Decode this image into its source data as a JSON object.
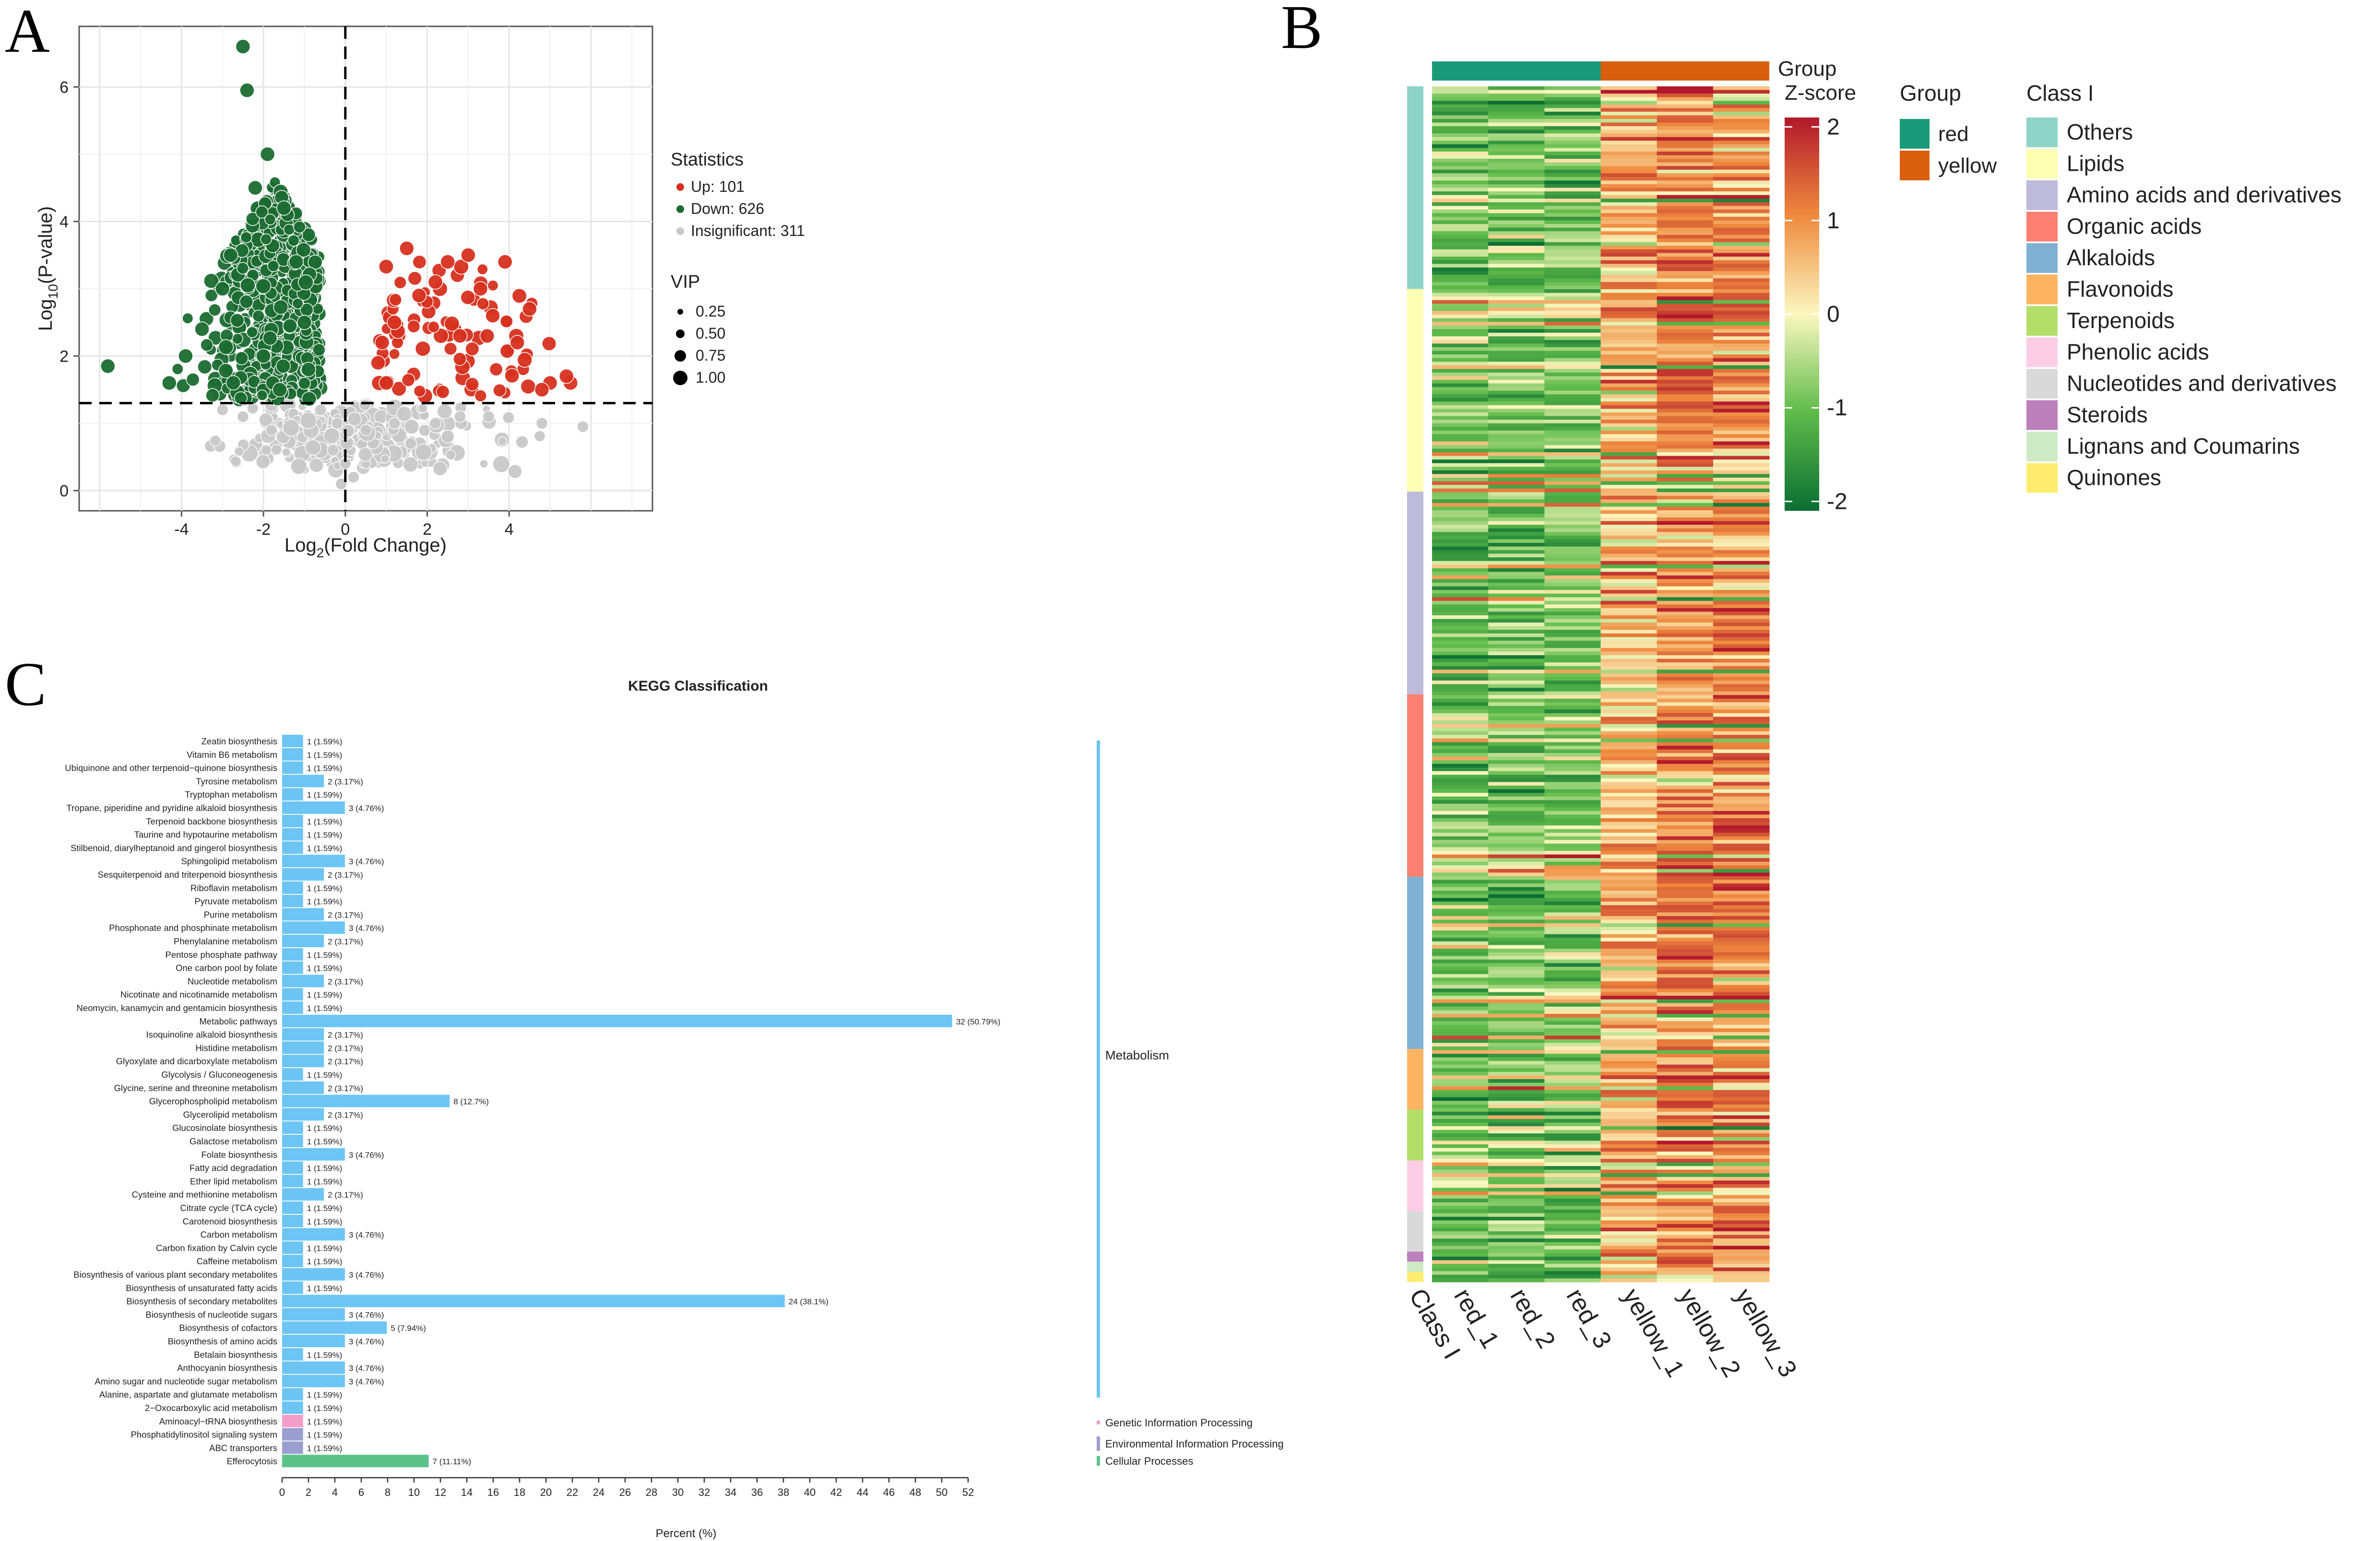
{
  "panels": [
    "A",
    "B",
    "C"
  ],
  "chart_data": [
    {
      "type": "scatter",
      "panel": "A",
      "title": "",
      "xlabel_main": "Log",
      "xlabel_sub": "2",
      "xlabel_rest": "(Fold Change)",
      "ylabel_main": "Log",
      "ylabel_sub": "10",
      "ylabel_rest": "(P-value)",
      "xlim": [
        -6.5,
        7.5
      ],
      "ylim": [
        -0.3,
        6.9
      ],
      "xticks": [
        -4,
        -2,
        0,
        2,
        4
      ],
      "yticks": [
        0,
        2,
        4,
        6
      ],
      "grid": true,
      "thresholds": {
        "x": 0,
        "y": 1.3
      },
      "legend_statistics_title": "Statistics",
      "legend_statistics": [
        {
          "label": "Up: 101",
          "color": "#d7301f"
        },
        {
          "label": "Down: 626",
          "color": "#1b6b32"
        },
        {
          "label": "Insignificant: 311",
          "color": "#c8c8c8"
        }
      ],
      "legend_vip_title": "VIP",
      "legend_vip": [
        "0.25",
        "0.50",
        "0.75",
        "1.00"
      ],
      "series": [
        {
          "name": "Up",
          "count": 101,
          "color": "#d7301f",
          "points": [
            [
              1.5,
              3.6
            ],
            [
              2.5,
              3.4
            ],
            [
              3.0,
              3.5
            ],
            [
              3.9,
              3.4
            ],
            [
              4.5,
              2.7
            ],
            [
              5.0,
              1.6
            ],
            [
              5.5,
              1.6
            ],
            [
              5.4,
              1.7
            ],
            [
              1.2,
              2.5
            ],
            [
              1.8,
              2.9
            ],
            [
              2.2,
              3.1
            ],
            [
              3.3,
              3.0
            ],
            [
              4.2,
              2.2
            ],
            [
              0.9,
              2.2
            ],
            [
              1.0,
              1.6
            ],
            [
              0.8,
              1.9
            ],
            [
              2.8,
              2.3
            ],
            [
              3.6,
              2.6
            ],
            [
              4.8,
              1.5
            ]
          ]
        },
        {
          "name": "Down",
          "count": 626,
          "color": "#1b6b32",
          "points": [
            [
              -2.5,
              6.6
            ],
            [
              -2.4,
              5.95
            ],
            [
              -1.9,
              5.0
            ],
            [
              -2.2,
              4.5
            ],
            [
              -1.5,
              4.2
            ],
            [
              -5.8,
              1.85
            ],
            [
              -3.5,
              2.4
            ],
            [
              -3.9,
              2.0
            ],
            [
              -4.3,
              1.6
            ],
            [
              -3.0,
              3.0
            ],
            [
              -1.0,
              2.5
            ],
            [
              -0.9,
              1.8
            ],
            [
              -2.8,
              3.5
            ],
            [
              -1.2,
              3.4
            ],
            [
              -2.0,
              2.0
            ],
            [
              -1.6,
              1.5
            ]
          ]
        },
        {
          "name": "Insignificant",
          "count": 311,
          "color": "#c8c8c8",
          "points": [
            [
              -0.1,
              0.1
            ],
            [
              0.0,
              0.4
            ],
            [
              0.5,
              0.9
            ],
            [
              -0.3,
              0.6
            ],
            [
              1.2,
              1.0
            ],
            [
              2.8,
              1.1
            ],
            [
              3.5,
              1.1
            ],
            [
              4.8,
              1.0
            ],
            [
              5.8,
              0.95
            ],
            [
              -2.5,
              1.1
            ],
            [
              -1.8,
              0.9
            ],
            [
              -3.0,
              1.2
            ],
            [
              -0.6,
              1.2
            ],
            [
              0.2,
              0.2
            ],
            [
              -0.2,
              1.0
            ],
            [
              2.2,
              1.0
            ],
            [
              1.6,
              0.7
            ]
          ]
        }
      ]
    },
    {
      "type": "heatmap",
      "panel": "B",
      "title": "",
      "columns": [
        "Class I",
        "red_1",
        "red_2",
        "red_3",
        "yellow_1",
        "yellow_2",
        "yellow_3"
      ],
      "group_track_label": "Group",
      "group_legend_title": "Group",
      "groups": [
        {
          "label": "red",
          "color": "#1a9a78"
        },
        {
          "label": "yellow",
          "color": "#d95f0e"
        }
      ],
      "zscore_title": "Z-score",
      "zscore_ticks": [
        "2",
        "1",
        "0",
        "-1",
        "-2"
      ],
      "zscore_range": [
        -2.1,
        2.1
      ],
      "class_legend_title": "Class I",
      "classes": [
        {
          "label": "Others",
          "color": "#8dd3c7",
          "fraction": 0.2
        },
        {
          "label": "Lipids",
          "color": "#ffffb3",
          "fraction": 0.2
        },
        {
          "label": "Amino acids and derivatives",
          "color": "#bebada",
          "fraction": 0.2
        },
        {
          "label": "Organic acids",
          "color": "#fb8072",
          "fraction": 0.18
        },
        {
          "label": "Alkaloids",
          "color": "#80b1d3",
          "fraction": 0.17
        },
        {
          "label": "Flavonoids",
          "color": "#fdb462",
          "fraction": 0.06
        },
        {
          "label": "Terpenoids",
          "color": "#b3de69",
          "fraction": 0.05
        },
        {
          "label": "Phenolic acids",
          "color": "#fccde5",
          "fraction": 0.05
        },
        {
          "label": "Nucleotides and derivatives",
          "color": "#d9d9d9",
          "fraction": 0.04
        },
        {
          "label": "Steroids",
          "color": "#bc80bd",
          "fraction": 0.01
        },
        {
          "label": "Lignans and Coumarins",
          "color": "#ccebc5",
          "fraction": 0.01
        },
        {
          "label": "Quinones",
          "color": "#ffed6f",
          "fraction": 0.01
        }
      ],
      "mean_zscore_by_sample": [
        -0.9,
        -0.9,
        -0.8,
        0.6,
        1.0,
        1.0
      ]
    },
    {
      "type": "bar",
      "orientation": "horizontal",
      "panel": "C",
      "title": "KEGG Classification",
      "xlabel": "Percent (%)",
      "xlim": [
        0,
        52
      ],
      "xticks": [
        0,
        2,
        4,
        6,
        8,
        10,
        12,
        14,
        16,
        18,
        20,
        22,
        24,
        26,
        28,
        30,
        32,
        34,
        36,
        38,
        40,
        42,
        44,
        46,
        48,
        50,
        52
      ],
      "group_legend": [
        {
          "label": "Metabolism",
          "color": "#6cc5f2"
        },
        {
          "label": "Genetic Information Processing",
          "color": "#f29ec8"
        },
        {
          "label": "Environmental Information Processing",
          "color": "#9a9ed0"
        },
        {
          "label": "Cellular Processes",
          "color": "#5cc28a"
        }
      ],
      "bars": [
        {
          "label": "Zeatin biosynthesis",
          "count": 1,
          "percent": 1.59,
          "text": "1 (1.59%)",
          "group": 0
        },
        {
          "label": "Vitamin B6 metabolism",
          "count": 1,
          "percent": 1.59,
          "text": "1 (1.59%)",
          "group": 0
        },
        {
          "label": "Ubiquinone and other terpenoid−quinone biosynthesis",
          "count": 1,
          "percent": 1.59,
          "text": "1 (1.59%)",
          "group": 0
        },
        {
          "label": "Tyrosine metabolism",
          "count": 2,
          "percent": 3.17,
          "text": "2 (3.17%)",
          "group": 0
        },
        {
          "label": "Tryptophan metabolism",
          "count": 1,
          "percent": 1.59,
          "text": "1 (1.59%)",
          "group": 0
        },
        {
          "label": "Tropane, piperidine and pyridine alkaloid biosynthesis",
          "count": 3,
          "percent": 4.76,
          "text": "3 (4.76%)",
          "group": 0
        },
        {
          "label": "Terpenoid backbone biosynthesis",
          "count": 1,
          "percent": 1.59,
          "text": "1 (1.59%)",
          "group": 0
        },
        {
          "label": "Taurine and hypotaurine metabolism",
          "count": 1,
          "percent": 1.59,
          "text": "1 (1.59%)",
          "group": 0
        },
        {
          "label": "Stilbenoid, diarylheptanoid and gingerol biosynthesis",
          "count": 1,
          "percent": 1.59,
          "text": "1 (1.59%)",
          "group": 0
        },
        {
          "label": "Sphingolipid metabolism",
          "count": 3,
          "percent": 4.76,
          "text": "3 (4.76%)",
          "group": 0
        },
        {
          "label": "Sesquiterpenoid and triterpenoid biosynthesis",
          "count": 2,
          "percent": 3.17,
          "text": "2 (3.17%)",
          "group": 0
        },
        {
          "label": "Riboflavin metabolism",
          "count": 1,
          "percent": 1.59,
          "text": "1 (1.59%)",
          "group": 0
        },
        {
          "label": "Pyruvate metabolism",
          "count": 1,
          "percent": 1.59,
          "text": "1 (1.59%)",
          "group": 0
        },
        {
          "label": "Purine metabolism",
          "count": 2,
          "percent": 3.17,
          "text": "2 (3.17%)",
          "group": 0
        },
        {
          "label": "Phosphonate and phosphinate metabolism",
          "count": 3,
          "percent": 4.76,
          "text": "3 (4.76%)",
          "group": 0
        },
        {
          "label": "Phenylalanine metabolism",
          "count": 2,
          "percent": 3.17,
          "text": "2 (3.17%)",
          "group": 0
        },
        {
          "label": "Pentose phosphate pathway",
          "count": 1,
          "percent": 1.59,
          "text": "1 (1.59%)",
          "group": 0
        },
        {
          "label": "One carbon pool by folate",
          "count": 1,
          "percent": 1.59,
          "text": "1 (1.59%)",
          "group": 0
        },
        {
          "label": "Nucleotide metabolism",
          "count": 2,
          "percent": 3.17,
          "text": "2 (3.17%)",
          "group": 0
        },
        {
          "label": "Nicotinate and nicotinamide metabolism",
          "count": 1,
          "percent": 1.59,
          "text": "1 (1.59%)",
          "group": 0
        },
        {
          "label": "Neomycin, kanamycin and gentamicin biosynthesis",
          "count": 1,
          "percent": 1.59,
          "text": "1 (1.59%)",
          "group": 0
        },
        {
          "label": "Metabolic pathways",
          "count": 32,
          "percent": 50.79,
          "text": "32 (50.79%)",
          "group": 0
        },
        {
          "label": "Isoquinoline alkaloid biosynthesis",
          "count": 2,
          "percent": 3.17,
          "text": "2 (3.17%)",
          "group": 0
        },
        {
          "label": "Histidine metabolism",
          "count": 2,
          "percent": 3.17,
          "text": "2 (3.17%)",
          "group": 0
        },
        {
          "label": "Glyoxylate and dicarboxylate metabolism",
          "count": 2,
          "percent": 3.17,
          "text": "2 (3.17%)",
          "group": 0
        },
        {
          "label": "Glycolysis / Gluconeogenesis",
          "count": 1,
          "percent": 1.59,
          "text": "1 (1.59%)",
          "group": 0
        },
        {
          "label": "Glycine, serine and threonine metabolism",
          "count": 2,
          "percent": 3.17,
          "text": "2 (3.17%)",
          "group": 0
        },
        {
          "label": "Glycerophospholipid metabolism",
          "count": 8,
          "percent": 12.7,
          "text": "8 (12.7%)",
          "group": 0
        },
        {
          "label": "Glycerolipid metabolism",
          "count": 2,
          "percent": 3.17,
          "text": "2 (3.17%)",
          "group": 0
        },
        {
          "label": "Glucosinolate biosynthesis",
          "count": 1,
          "percent": 1.59,
          "text": "1 (1.59%)",
          "group": 0
        },
        {
          "label": "Galactose metabolism",
          "count": 1,
          "percent": 1.59,
          "text": "1 (1.59%)",
          "group": 0
        },
        {
          "label": "Folate biosynthesis",
          "count": 3,
          "percent": 4.76,
          "text": "3 (4.76%)",
          "group": 0
        },
        {
          "label": "Fatty acid degradation",
          "count": 1,
          "percent": 1.59,
          "text": "1 (1.59%)",
          "group": 0
        },
        {
          "label": "Ether lipid metabolism",
          "count": 1,
          "percent": 1.59,
          "text": "1 (1.59%)",
          "group": 0
        },
        {
          "label": "Cysteine and methionine metabolism",
          "count": 2,
          "percent": 3.17,
          "text": "2 (3.17%)",
          "group": 0
        },
        {
          "label": "Citrate cycle (TCA cycle)",
          "count": 1,
          "percent": 1.59,
          "text": "1 (1.59%)",
          "group": 0
        },
        {
          "label": "Carotenoid biosynthesis",
          "count": 1,
          "percent": 1.59,
          "text": "1 (1.59%)",
          "group": 0
        },
        {
          "label": "Carbon metabolism",
          "count": 3,
          "percent": 4.76,
          "text": "3 (4.76%)",
          "group": 0
        },
        {
          "label": "Carbon fixation by Calvin cycle",
          "count": 1,
          "percent": 1.59,
          "text": "1 (1.59%)",
          "group": 0
        },
        {
          "label": "Caffeine metabolism",
          "count": 1,
          "percent": 1.59,
          "text": "1 (1.59%)",
          "group": 0
        },
        {
          "label": "Biosynthesis of various plant secondary metabolites",
          "count": 3,
          "percent": 4.76,
          "text": "3 (4.76%)",
          "group": 0
        },
        {
          "label": "Biosynthesis of unsaturated fatty acids",
          "count": 1,
          "percent": 1.59,
          "text": "1 (1.59%)",
          "group": 0
        },
        {
          "label": "Biosynthesis of secondary metabolites",
          "count": 24,
          "percent": 38.1,
          "text": "24 (38.1%)",
          "group": 0
        },
        {
          "label": "Biosynthesis of nucleotide sugars",
          "count": 3,
          "percent": 4.76,
          "text": "3 (4.76%)",
          "group": 0
        },
        {
          "label": "Biosynthesis of cofactors",
          "count": 5,
          "percent": 7.94,
          "text": "5 (7.94%)",
          "group": 0
        },
        {
          "label": "Biosynthesis of amino acids",
          "count": 3,
          "percent": 4.76,
          "text": "3 (4.76%)",
          "group": 0
        },
        {
          "label": "Betalain biosynthesis",
          "count": 1,
          "percent": 1.59,
          "text": "1 (1.59%)",
          "group": 0
        },
        {
          "label": "Anthocyanin biosynthesis",
          "count": 3,
          "percent": 4.76,
          "text": "3 (4.76%)",
          "group": 0
        },
        {
          "label": "Amino sugar and nucleotide sugar metabolism",
          "count": 3,
          "percent": 4.76,
          "text": "3 (4.76%)",
          "group": 0
        },
        {
          "label": "Alanine, aspartate and glutamate metabolism",
          "count": 1,
          "percent": 1.59,
          "text": "1 (1.59%)",
          "group": 0
        },
        {
          "label": "2−Oxocarboxylic acid metabolism",
          "count": 1,
          "percent": 1.59,
          "text": "1 (1.59%)",
          "group": 0
        },
        {
          "label": "Aminoacyl−tRNA biosynthesis",
          "count": 1,
          "percent": 1.59,
          "text": "1 (1.59%)",
          "group": 1
        },
        {
          "label": "Phosphatidylinositol signaling system",
          "count": 1,
          "percent": 1.59,
          "text": "1 (1.59%)",
          "group": 2
        },
        {
          "label": "ABC transporters",
          "count": 1,
          "percent": 1.59,
          "text": "1 (1.59%)",
          "group": 2
        },
        {
          "label": "Efferocytosis",
          "count": 7,
          "percent": 11.11,
          "text": "7 (11.11%)",
          "group": 3
        }
      ]
    }
  ]
}
